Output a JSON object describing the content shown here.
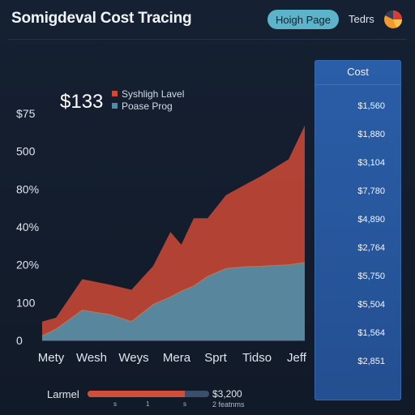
{
  "header": {
    "title": "Somigdeval Cost Tracing",
    "button_label": "Hoigh Page",
    "link_label": "Tedrs",
    "icon": "pie-chart-icon",
    "accent": "#5bb4c9"
  },
  "summary": {
    "value": "$133",
    "legend": [
      {
        "label": "Syshligh Lavel",
        "color": "#cf4a36"
      },
      {
        "label": "Poase Prog",
        "color": "#4d8ea8"
      }
    ]
  },
  "chart_data": {
    "type": "area",
    "categories": [
      "Mety",
      "Wesh",
      "Weys",
      "Mera",
      "Sprt",
      "Tidso",
      "Jeff"
    ],
    "y_tick_labels": [
      "0",
      "100",
      "20%",
      "40%",
      "80%",
      "500",
      "$75"
    ],
    "ylim": [
      0,
      6
    ],
    "x": [
      0,
      0.37,
      1.07,
      1.82,
      2.38,
      2.96,
      3.42,
      3.71,
      4.04,
      4.41,
      4.9,
      5.45,
      5.83,
      6.57,
      7
    ],
    "series": [
      {
        "name": "Poase Prog",
        "color": "#4d8ea8",
        "values": [
          0.12,
          0.3,
          0.8,
          0.68,
          0.5,
          0.95,
          1.15,
          1.3,
          1.44,
          1.69,
          1.9,
          1.95,
          1.96,
          2.0,
          2.06
        ]
      },
      {
        "name": "Syshligh Lavel",
        "color": "#cf4a36",
        "values": [
          0.5,
          0.6,
          1.62,
          1.47,
          1.34,
          1.97,
          2.87,
          2.53,
          3.23,
          3.23,
          3.84,
          4.14,
          4.34,
          4.79,
          5.68
        ]
      }
    ],
    "grid": true
  },
  "cost_panel": {
    "title": "Cost",
    "values": [
      "$1,560",
      "$1,880",
      "$3,104",
      "$7,780",
      "$4,890",
      "$2,764",
      "$5,750",
      "$5,504",
      "$1,564",
      "$2,851"
    ]
  },
  "slider": {
    "label": "Larmel",
    "value_label": "$3,200",
    "fill_fraction": 0.8,
    "ticks": [
      "s",
      "1",
      "s"
    ],
    "caption": "2 featnms"
  }
}
